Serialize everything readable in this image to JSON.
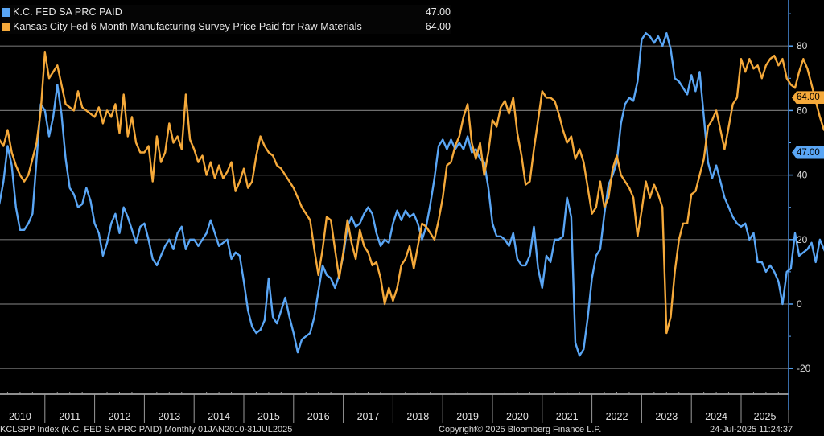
{
  "chart_data": {
    "type": "line",
    "title": "",
    "xlabel": "",
    "ylabel": "",
    "x_start": "2010-01",
    "x_end": "2025-07",
    "frequency": "monthly",
    "ylim": [
      -28,
      93
    ],
    "yticks": [
      -20,
      0,
      20,
      40,
      60,
      80
    ],
    "ytick_labels": [
      "-20",
      "0",
      "20",
      "40",
      "60",
      "80"
    ],
    "xtick_labels": [
      "2010",
      "2011",
      "2012",
      "2013",
      "2014",
      "2015",
      "2016",
      "2017",
      "2018",
      "2019",
      "2020",
      "2021",
      "2022",
      "2023",
      "2024",
      "2025"
    ],
    "grid": true,
    "legend_position": "top-left",
    "y_axis_side": "right",
    "series": [
      {
        "name": "K.C. FED SA PRC PAID",
        "color": "#5aa6f5",
        "last_value": "47.00",
        "values": [
          35,
          31,
          38,
          49,
          43,
          30,
          23,
          23,
          25,
          28,
          45,
          62,
          60,
          52,
          58,
          68,
          59,
          45,
          36,
          34,
          30,
          31,
          36,
          32,
          25,
          22,
          15,
          19,
          25,
          28,
          22,
          30,
          27,
          23,
          19,
          24,
          25,
          20,
          14,
          12,
          15,
          18,
          20,
          17,
          22,
          24,
          17,
          20,
          20,
          18,
          20,
          22,
          26,
          22,
          18,
          19,
          20,
          14,
          16,
          15,
          7,
          -2,
          -7,
          -9,
          -8,
          -5,
          8,
          -4,
          -6,
          -2,
          2,
          -4,
          -9,
          -15,
          -11,
          -10,
          -9,
          -4,
          4,
          12,
          9,
          8,
          5,
          9,
          15,
          24,
          27,
          24,
          25,
          28,
          30,
          28,
          22,
          18,
          20,
          19,
          25,
          29,
          26,
          29,
          27,
          28,
          25,
          20,
          24,
          31,
          39,
          49,
          51,
          48,
          51,
          48,
          50,
          48,
          52,
          47,
          48,
          45,
          44,
          36,
          25,
          21,
          21,
          20,
          18,
          22,
          14,
          12,
          12,
          15,
          24,
          11,
          5,
          15,
          13,
          20,
          20,
          21,
          33,
          27,
          -12,
          -16,
          -14,
          -4,
          8,
          15,
          17,
          28,
          37,
          40,
          44,
          56,
          62,
          64,
          63,
          69,
          82,
          84,
          83,
          81,
          83,
          80,
          84,
          79,
          70,
          69,
          67,
          65,
          71,
          66,
          72,
          58,
          44,
          39,
          43,
          38,
          33,
          30,
          27,
          25,
          24,
          25,
          20,
          22,
          13,
          13,
          10,
          12,
          10,
          7,
          0,
          10,
          11,
          22,
          15,
          16,
          17,
          19,
          13,
          20,
          17,
          14,
          17,
          18,
          14,
          17,
          12,
          8,
          17,
          18,
          35,
          42,
          41,
          34,
          44,
          51,
          47
        ]
      },
      {
        "name": "Kansas City Fed 6 Month Manufacturing Survey Price Paid for Raw Materials",
        "color": "#f5a93a",
        "last_value": "64.00",
        "values": [
          50,
          51,
          49,
          54,
          47,
          43,
          40,
          38,
          40,
          45,
          50,
          60,
          78,
          70,
          72,
          74,
          68,
          62,
          61,
          60,
          66,
          61,
          60,
          59,
          58,
          61,
          56,
          60,
          58,
          62,
          53,
          65,
          52,
          58,
          50,
          47,
          47,
          49,
          38,
          52,
          44,
          47,
          56,
          50,
          52,
          48,
          65,
          51,
          48,
          44,
          46,
          40,
          44,
          39,
          43,
          39,
          41,
          44,
          35,
          38,
          42,
          36,
          38,
          46,
          52,
          49,
          47,
          46,
          43,
          42,
          40,
          38,
          36,
          33,
          30,
          28,
          26,
          17,
          9,
          17,
          27,
          26,
          17,
          8,
          16,
          26,
          19,
          14,
          23,
          18,
          16,
          12,
          13,
          8,
          0,
          5,
          1,
          5,
          12,
          14,
          18,
          11,
          18,
          25,
          24,
          22,
          20,
          26,
          33,
          43,
          44,
          49,
          52,
          58,
          62,
          50,
          45,
          50,
          40,
          47,
          57,
          55,
          61,
          63,
          59,
          64,
          53,
          46,
          37,
          38,
          48,
          57,
          66,
          64,
          64,
          63,
          59,
          54,
          50,
          52,
          45,
          48,
          44,
          36,
          28,
          30,
          38,
          30,
          33,
          42,
          46,
          40,
          38,
          36,
          33,
          21,
          29,
          38,
          33,
          37,
          34,
          30,
          -9,
          -4,
          10,
          20,
          25,
          25,
          34,
          35,
          40,
          45,
          55,
          57,
          60,
          54,
          48,
          55,
          62,
          64,
          76,
          72,
          76,
          73,
          74,
          70,
          74,
          76,
          77,
          74,
          76,
          70,
          68,
          67,
          72,
          76,
          73,
          68,
          63,
          58,
          54,
          60,
          54,
          47,
          39,
          34,
          33,
          31,
          30,
          35,
          34,
          27,
          22,
          14,
          12,
          24,
          27,
          28,
          20,
          31,
          28,
          30,
          38,
          37,
          32,
          36,
          33,
          38,
          40,
          39,
          35,
          37,
          34,
          33,
          35,
          40,
          45,
          58,
          59,
          71,
          62,
          51,
          64,
          64
        ]
      }
    ]
  },
  "legend": {
    "items": [
      {
        "label": "K.C. FED SA PRC PAID",
        "value": "47.00",
        "color": "#5aa6f5"
      },
      {
        "label": "Kansas City Fed 6 Month Manufacturing Survey Price Paid for Raw Materials",
        "value": "64.00",
        "color": "#f5a93a"
      }
    ]
  },
  "tags": {
    "orange": "64.00",
    "blue": "47.00"
  },
  "footer": {
    "source": "KCLSPP Index (K.C. FED SA   PRC PAID)  Monthly 01JAN2010-31JUL2025",
    "copyright": "Copyright© 2025 Bloomberg Finance L.P.",
    "timestamp": "24-Jul-2025 11:24:37"
  }
}
